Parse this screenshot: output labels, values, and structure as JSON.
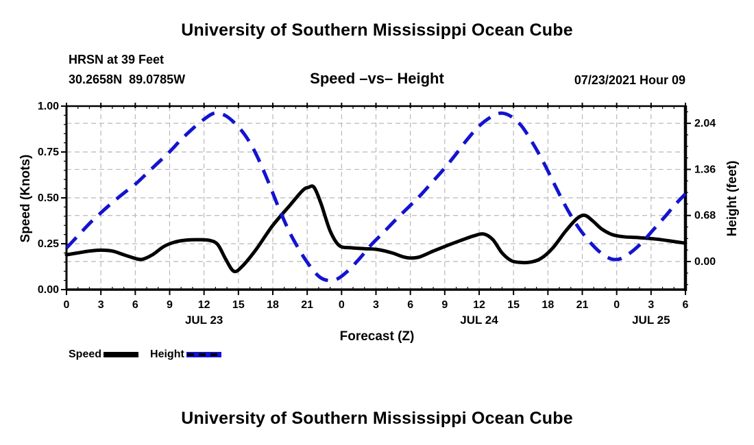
{
  "titles": {
    "top": "University of Southern Mississippi Ocean Cube",
    "bottom": "University of Southern Mississippi Ocean Cube",
    "station": "HRSN at 39 Feet",
    "coords": "30.2658N  89.0785W",
    "chart": "Speed –vs– Height",
    "datetime": "07/23/2021 Hour 09"
  },
  "axes": {
    "x_label": "Forecast (Z)",
    "y_left_label": "Speed (Knots)",
    "y_right_label": "Height (feet)"
  },
  "legend": {
    "speed_label": "Speed",
    "height_label": "Height"
  },
  "colors": {
    "speed_line": "#000000",
    "height_line": "#1313cf",
    "gridline": "#b8b8b8",
    "axis": "#000000"
  },
  "chart_data": {
    "type": "line",
    "title": "Speed –vs– Height",
    "xlabel": "Forecast (Z)",
    "x_range": [
      0,
      54
    ],
    "x_tick_hours": [
      0,
      3,
      6,
      9,
      12,
      15,
      18,
      21,
      24,
      27,
      30,
      33,
      36,
      39,
      42,
      45,
      48,
      51,
      54
    ],
    "x_tick_labels": [
      "0",
      "3",
      "6",
      "9",
      "12",
      "15",
      "18",
      "21",
      "0",
      "3",
      "6",
      "9",
      "12",
      "15",
      "18",
      "21",
      "0",
      "3",
      "6"
    ],
    "date_labels": [
      {
        "label": "JUL 23",
        "hour": 12
      },
      {
        "label": "JUL 24",
        "hour": 36
      },
      {
        "label": "JUL 25",
        "hour": 51
      }
    ],
    "grid": true,
    "legend_position": "bottom-left",
    "y_left": {
      "label": "Speed (Knots)",
      "range": [
        0,
        1
      ],
      "ticks": [
        0,
        0.25,
        0.5,
        0.75,
        1
      ],
      "tick_labels": [
        "0.00",
        "0.25",
        "0.50",
        "0.75",
        "1.00"
      ]
    },
    "y_right": {
      "label": "Height (feet)",
      "range": [
        -0.414,
        2.294
      ],
      "ticks": [
        0,
        0.68,
        1.36,
        2.04
      ],
      "tick_labels": [
        "0.00",
        "0.68",
        "1.36",
        "2.04"
      ]
    },
    "series": [
      {
        "name": "Speed",
        "axis": "left",
        "color": "#000000",
        "style": "solid",
        "unit": "knots",
        "points": [
          [
            0,
            0.19
          ],
          [
            1,
            0.2
          ],
          [
            2,
            0.21
          ],
          [
            3,
            0.215
          ],
          [
            4,
            0.21
          ],
          [
            5,
            0.19
          ],
          [
            6,
            0.17
          ],
          [
            6.6,
            0.165
          ],
          [
            7.5,
            0.19
          ],
          [
            8.5,
            0.235
          ],
          [
            9.5,
            0.26
          ],
          [
            10.5,
            0.27
          ],
          [
            11.5,
            0.272
          ],
          [
            12.5,
            0.268
          ],
          [
            13.2,
            0.245
          ],
          [
            13.9,
            0.165
          ],
          [
            14.6,
            0.1
          ],
          [
            15.3,
            0.125
          ],
          [
            16.5,
            0.215
          ],
          [
            18,
            0.35
          ],
          [
            19.5,
            0.46
          ],
          [
            20.6,
            0.54
          ],
          [
            21.1,
            0.557
          ],
          [
            21.6,
            0.557
          ],
          [
            22.2,
            0.47
          ],
          [
            23,
            0.32
          ],
          [
            23.8,
            0.24
          ],
          [
            24.8,
            0.228
          ],
          [
            26,
            0.223
          ],
          [
            27.2,
            0.218
          ],
          [
            28.4,
            0.2
          ],
          [
            29.3,
            0.18
          ],
          [
            30,
            0.172
          ],
          [
            30.8,
            0.178
          ],
          [
            32,
            0.21
          ],
          [
            33.2,
            0.24
          ],
          [
            34.4,
            0.268
          ],
          [
            35.5,
            0.292
          ],
          [
            36.4,
            0.303
          ],
          [
            37.2,
            0.272
          ],
          [
            38,
            0.2
          ],
          [
            38.8,
            0.158
          ],
          [
            39.6,
            0.148
          ],
          [
            40.5,
            0.15
          ],
          [
            41.4,
            0.17
          ],
          [
            42.4,
            0.225
          ],
          [
            43.5,
            0.315
          ],
          [
            44.5,
            0.385
          ],
          [
            45.2,
            0.405
          ],
          [
            45.9,
            0.375
          ],
          [
            46.7,
            0.33
          ],
          [
            47.6,
            0.3
          ],
          [
            48.6,
            0.288
          ],
          [
            50,
            0.283
          ],
          [
            51.5,
            0.275
          ],
          [
            53,
            0.262
          ],
          [
            54,
            0.253
          ]
        ]
      },
      {
        "name": "Height",
        "axis": "right",
        "color": "#1313cf",
        "style": "dashed",
        "unit": "feet",
        "points": [
          [
            0,
            0.2
          ],
          [
            1,
            0.38
          ],
          [
            2,
            0.56
          ],
          [
            3,
            0.72
          ],
          [
            4,
            0.87
          ],
          [
            5,
            1.01
          ],
          [
            6,
            1.14
          ],
          [
            7,
            1.3
          ],
          [
            8,
            1.46
          ],
          [
            9,
            1.62
          ],
          [
            10,
            1.8
          ],
          [
            11,
            1.96
          ],
          [
            12,
            2.1
          ],
          [
            12.9,
            2.19
          ],
          [
            13.8,
            2.16
          ],
          [
            14.7,
            2.04
          ],
          [
            15.6,
            1.86
          ],
          [
            16.5,
            1.6
          ],
          [
            17.5,
            1.22
          ],
          [
            18.5,
            0.8
          ],
          [
            19.5,
            0.42
          ],
          [
            20.5,
            0.12
          ],
          [
            21.3,
            -0.08
          ],
          [
            22.1,
            -0.23
          ],
          [
            22.9,
            -0.28
          ],
          [
            23.7,
            -0.25
          ],
          [
            24.6,
            -0.13
          ],
          [
            25.6,
            0.05
          ],
          [
            26.6,
            0.25
          ],
          [
            27.6,
            0.42
          ],
          [
            28.8,
            0.63
          ],
          [
            30,
            0.83
          ],
          [
            31,
            1.0
          ],
          [
            32,
            1.19
          ],
          [
            33,
            1.38
          ],
          [
            34,
            1.59
          ],
          [
            35,
            1.81
          ],
          [
            36,
            2.0
          ],
          [
            37,
            2.13
          ],
          [
            37.9,
            2.19
          ],
          [
            38.8,
            2.14
          ],
          [
            39.7,
            2.0
          ],
          [
            40.6,
            1.77
          ],
          [
            41.6,
            1.47
          ],
          [
            42.6,
            1.13
          ],
          [
            43.6,
            0.8
          ],
          [
            44.6,
            0.52
          ],
          [
            45.6,
            0.3
          ],
          [
            46.6,
            0.13
          ],
          [
            47.5,
            0.04
          ],
          [
            48.3,
            0.04
          ],
          [
            49.2,
            0.13
          ],
          [
            50.2,
            0.28
          ],
          [
            51.2,
            0.47
          ],
          [
            52.2,
            0.66
          ],
          [
            53.1,
            0.84
          ],
          [
            54,
            1.0
          ]
        ]
      }
    ]
  }
}
